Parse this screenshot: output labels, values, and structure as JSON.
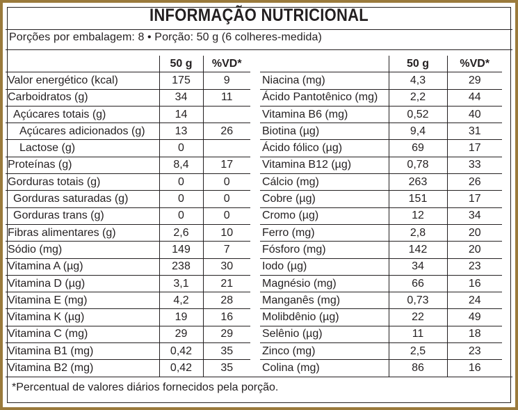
{
  "title": "INFORMAÇÃO NUTRICIONAL",
  "portion_info": "Porções por embalagem: 8 • Porção: 50 g (6 colheres-medida)",
  "columns": {
    "amount": "50 g",
    "dv": "%VD*"
  },
  "left_rows": [
    {
      "name": "Valor energético (kcal)",
      "amount": "175",
      "dv": "9",
      "indent": 0
    },
    {
      "name": "Carboidratos (g)",
      "amount": "34",
      "dv": "11",
      "indent": 0
    },
    {
      "name": "Açúcares totais (g)",
      "amount": "14",
      "dv": "",
      "indent": 1
    },
    {
      "name": "Açúcares adicionados (g)",
      "amount": "13",
      "dv": "26",
      "indent": 2
    },
    {
      "name": "Lactose (g)",
      "amount": "0",
      "dv": "",
      "indent": 2
    },
    {
      "name": "Proteínas (g)",
      "amount": "8,4",
      "dv": "17",
      "indent": 0
    },
    {
      "name": "Gorduras totais (g)",
      "amount": "0",
      "dv": "0",
      "indent": 0
    },
    {
      "name": "Gorduras saturadas (g)",
      "amount": "0",
      "dv": "0",
      "indent": 1
    },
    {
      "name": "Gorduras trans (g)",
      "amount": "0",
      "dv": "0",
      "indent": 1
    },
    {
      "name": "Fibras alimentares (g)",
      "amount": "2,6",
      "dv": "10",
      "indent": 0
    },
    {
      "name": "Sódio (mg)",
      "amount": "149",
      "dv": "7",
      "indent": 0
    },
    {
      "name": "Vitamina A (µg)",
      "amount": "238",
      "dv": "30",
      "indent": 0
    },
    {
      "name": "Vitamina D (µg)",
      "amount": "3,1",
      "dv": "21",
      "indent": 0
    },
    {
      "name": "Vitamina E (mg)",
      "amount": "4,2",
      "dv": "28",
      "indent": 0
    },
    {
      "name": "Vitamina K (µg)",
      "amount": "19",
      "dv": "16",
      "indent": 0
    },
    {
      "name": "Vitamina C (mg)",
      "amount": "29",
      "dv": "29",
      "indent": 0
    },
    {
      "name": "Vitamina B1 (mg)",
      "amount": "0,42",
      "dv": "35",
      "indent": 0
    },
    {
      "name": "Vitamina B2 (mg)",
      "amount": "0,42",
      "dv": "35",
      "indent": 0
    }
  ],
  "right_rows": [
    {
      "name": "Niacina (mg)",
      "amount": "4,3",
      "dv": "29"
    },
    {
      "name": "Ácido Pantotênico (mg)",
      "amount": "2,2",
      "dv": "44"
    },
    {
      "name": "Vitamina B6 (mg)",
      "amount": "0,52",
      "dv": "40"
    },
    {
      "name": "Biotina (µg)",
      "amount": "9,4",
      "dv": "31"
    },
    {
      "name": "Ácido fólico (µg)",
      "amount": "69",
      "dv": "17"
    },
    {
      "name": "Vitamina B12 (µg)",
      "amount": "0,78",
      "dv": "33"
    },
    {
      "name": "Cálcio (mg)",
      "amount": "263",
      "dv": "26"
    },
    {
      "name": "Cobre (µg)",
      "amount": "151",
      "dv": "17"
    },
    {
      "name": "Cromo (µg)",
      "amount": "12",
      "dv": "34"
    },
    {
      "name": "Ferro (mg)",
      "amount": "2,8",
      "dv": "20"
    },
    {
      "name": "Fósforo (mg)",
      "amount": "142",
      "dv": "20"
    },
    {
      "name": "Iodo (µg)",
      "amount": "34",
      "dv": "23"
    },
    {
      "name": "Magnésio (mg)",
      "amount": "66",
      "dv": "16"
    },
    {
      "name": "Manganês (mg)",
      "amount": "0,73",
      "dv": "24"
    },
    {
      "name": "Molibdênio (µg)",
      "amount": "22",
      "dv": "49"
    },
    {
      "name": "Selênio (µg)",
      "amount": "11",
      "dv": "18"
    },
    {
      "name": "Zinco (mg)",
      "amount": "2,5",
      "dv": "23"
    },
    {
      "name": "Colina (mg)",
      "amount": "86",
      "dv": "16"
    }
  ],
  "footnote": "*Percentual de valores diários fornecidos pela porção.",
  "colors": {
    "frame": "#9a7a3c",
    "ink": "#231f20"
  }
}
